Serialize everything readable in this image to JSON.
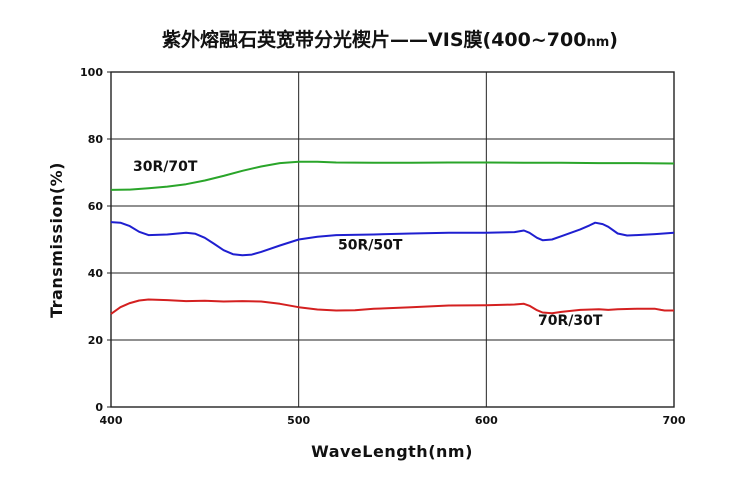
{
  "chart_data": {
    "type": "line",
    "title": "紫外熔融石英宽带分光楔片——VIS膜(400~700",
    "title_unit": "nm",
    "title_close": ")",
    "xlabel": "WaveLength(nm)",
    "ylabel": "Transmission(%)",
    "xlim": [
      400,
      700
    ],
    "ylim": [
      0,
      100
    ],
    "xticks": [
      400,
      500,
      600,
      700
    ],
    "yticks": [
      0,
      20,
      40,
      60,
      80,
      100
    ],
    "grid": true,
    "series": [
      {
        "name": "30R/70T",
        "color": "#2aa52a",
        "x": [
          400,
          410,
          420,
          430,
          440,
          450,
          460,
          470,
          480,
          490,
          500,
          510,
          520,
          540,
          560,
          580,
          600,
          620,
          640,
          660,
          680,
          700
        ],
        "y": [
          64.8,
          64.9,
          65.3,
          65.8,
          66.5,
          67.6,
          69.0,
          70.5,
          71.8,
          72.8,
          73.2,
          73.2,
          73.0,
          72.9,
          72.9,
          73.0,
          73.0,
          72.9,
          72.9,
          72.8,
          72.8,
          72.7
        ]
      },
      {
        "name": "50R/50T",
        "color": "#1f1fd0",
        "x": [
          400,
          405,
          410,
          415,
          420,
          430,
          440,
          445,
          450,
          455,
          460,
          465,
          470,
          475,
          480,
          490,
          500,
          510,
          520,
          540,
          560,
          580,
          600,
          615,
          620,
          623,
          627,
          630,
          635,
          640,
          650,
          655,
          658,
          662,
          665,
          670,
          675,
          680,
          690,
          700
        ],
        "y": [
          55.2,
          55.0,
          54.0,
          52.3,
          51.3,
          51.5,
          52.0,
          51.7,
          50.5,
          48.7,
          46.8,
          45.6,
          45.3,
          45.5,
          46.3,
          48.2,
          50.0,
          50.8,
          51.3,
          51.5,
          51.8,
          52.0,
          52.0,
          52.2,
          52.7,
          52.0,
          50.5,
          49.8,
          50.0,
          51.0,
          53.0,
          54.2,
          55.0,
          54.6,
          53.8,
          51.8,
          51.2,
          51.3,
          51.6,
          52.0
        ]
      },
      {
        "name": "70R/30T",
        "color": "#d42020",
        "x": [
          400,
          405,
          410,
          415,
          420,
          430,
          440,
          450,
          460,
          470,
          480,
          490,
          500,
          510,
          520,
          530,
          540,
          560,
          580,
          600,
          610,
          615,
          620,
          623,
          627,
          630,
          635,
          640,
          650,
          660,
          665,
          670,
          680,
          690,
          693,
          695,
          700
        ],
        "y": [
          27.8,
          29.8,
          31.0,
          31.8,
          32.1,
          31.9,
          31.6,
          31.7,
          31.5,
          31.6,
          31.5,
          30.8,
          29.8,
          29.1,
          28.8,
          28.9,
          29.3,
          29.8,
          30.3,
          30.4,
          30.5,
          30.6,
          30.8,
          30.2,
          28.9,
          28.2,
          28.0,
          28.4,
          29.0,
          29.2,
          29.0,
          29.2,
          29.3,
          29.3,
          29.0,
          28.8,
          28.8
        ]
      }
    ]
  }
}
